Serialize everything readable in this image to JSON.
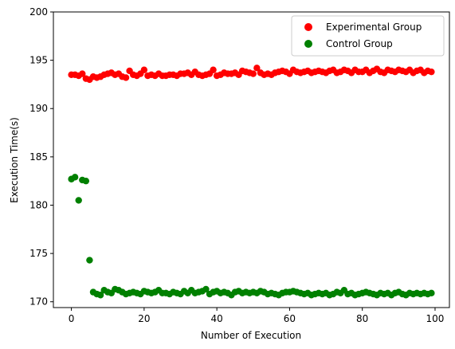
{
  "chart_data": {
    "type": "scatter",
    "xlabel": "Number of Execution",
    "ylabel": "Execution Time(s)",
    "xlim": [
      -4.95,
      103.95
    ],
    "ylim": [
      169.4,
      200
    ],
    "xticks": [
      0,
      20,
      40,
      60,
      80,
      100
    ],
    "yticks": [
      170,
      175,
      180,
      185,
      190,
      195,
      200
    ],
    "grid": false,
    "legend_position": "top-right",
    "x": [
      0,
      1,
      2,
      3,
      4,
      5,
      6,
      7,
      8,
      9,
      10,
      11,
      12,
      13,
      14,
      15,
      16,
      17,
      18,
      19,
      20,
      21,
      22,
      23,
      24,
      25,
      26,
      27,
      28,
      29,
      30,
      31,
      32,
      33,
      34,
      35,
      36,
      37,
      38,
      39,
      40,
      41,
      42,
      43,
      44,
      45,
      46,
      47,
      48,
      49,
      50,
      51,
      52,
      53,
      54,
      55,
      56,
      57,
      58,
      59,
      60,
      61,
      62,
      63,
      64,
      65,
      66,
      67,
      68,
      69,
      70,
      71,
      72,
      73,
      74,
      75,
      76,
      77,
      78,
      79,
      80,
      81,
      82,
      83,
      84,
      85,
      86,
      87,
      88,
      89,
      90,
      91,
      92,
      93,
      94,
      95,
      96,
      97,
      98,
      99
    ],
    "series": [
      {
        "name": "Experimental Group",
        "color": "#ff0000",
        "values": [
          193.5,
          193.5,
          193.4,
          193.6,
          193.1,
          193.0,
          193.3,
          193.2,
          193.3,
          193.5,
          193.6,
          193.7,
          193.5,
          193.6,
          193.3,
          193.2,
          193.9,
          193.5,
          193.4,
          193.6,
          194.0,
          193.4,
          193.5,
          193.4,
          193.6,
          193.4,
          193.4,
          193.5,
          193.5,
          193.4,
          193.6,
          193.6,
          193.7,
          193.5,
          193.8,
          193.5,
          193.4,
          193.5,
          193.6,
          194.0,
          193.4,
          193.5,
          193.7,
          193.6,
          193.6,
          193.7,
          193.5,
          193.9,
          193.8,
          193.7,
          193.6,
          194.2,
          193.7,
          193.5,
          193.6,
          193.5,
          193.7,
          193.8,
          193.9,
          193.8,
          193.6,
          194.0,
          193.8,
          193.7,
          193.8,
          193.9,
          193.7,
          193.8,
          193.9,
          193.8,
          193.7,
          193.9,
          194.0,
          193.7,
          193.8,
          194.0,
          193.9,
          193.7,
          194.0,
          193.8,
          193.8,
          194.0,
          193.7,
          193.9,
          194.1,
          193.8,
          193.7,
          194.0,
          193.9,
          193.8,
          194.0,
          193.9,
          193.8,
          194.0,
          193.7,
          193.9,
          194.0,
          193.7,
          193.9,
          193.8
        ]
      },
      {
        "name": "Control Group",
        "color": "#008000",
        "values": [
          182.7,
          182.9,
          180.5,
          182.6,
          182.5,
          174.3,
          171.0,
          170.8,
          170.7,
          171.2,
          171.0,
          170.9,
          171.3,
          171.2,
          171.0,
          170.8,
          170.9,
          171.0,
          170.9,
          170.8,
          171.1,
          171.0,
          170.9,
          171.0,
          171.2,
          170.9,
          170.9,
          170.8,
          171.0,
          170.9,
          170.8,
          171.1,
          170.9,
          171.2,
          170.9,
          171.0,
          171.1,
          171.3,
          170.8,
          171.0,
          171.1,
          170.9,
          171.0,
          170.9,
          170.7,
          171.0,
          171.1,
          170.9,
          171.0,
          170.9,
          171.0,
          170.9,
          171.1,
          171.0,
          170.8,
          170.9,
          170.8,
          170.7,
          170.9,
          171.0,
          171.0,
          171.1,
          171.0,
          170.9,
          170.8,
          170.9,
          170.7,
          170.8,
          170.9,
          170.8,
          170.9,
          170.7,
          170.8,
          171.0,
          170.9,
          171.2,
          170.8,
          170.9,
          170.7,
          170.8,
          170.9,
          171.0,
          170.9,
          170.8,
          170.7,
          170.9,
          170.8,
          170.9,
          170.7,
          170.9,
          171.0,
          170.8,
          170.7,
          170.9,
          170.8,
          170.9,
          170.8,
          170.9,
          170.8,
          170.9
        ]
      }
    ]
  }
}
